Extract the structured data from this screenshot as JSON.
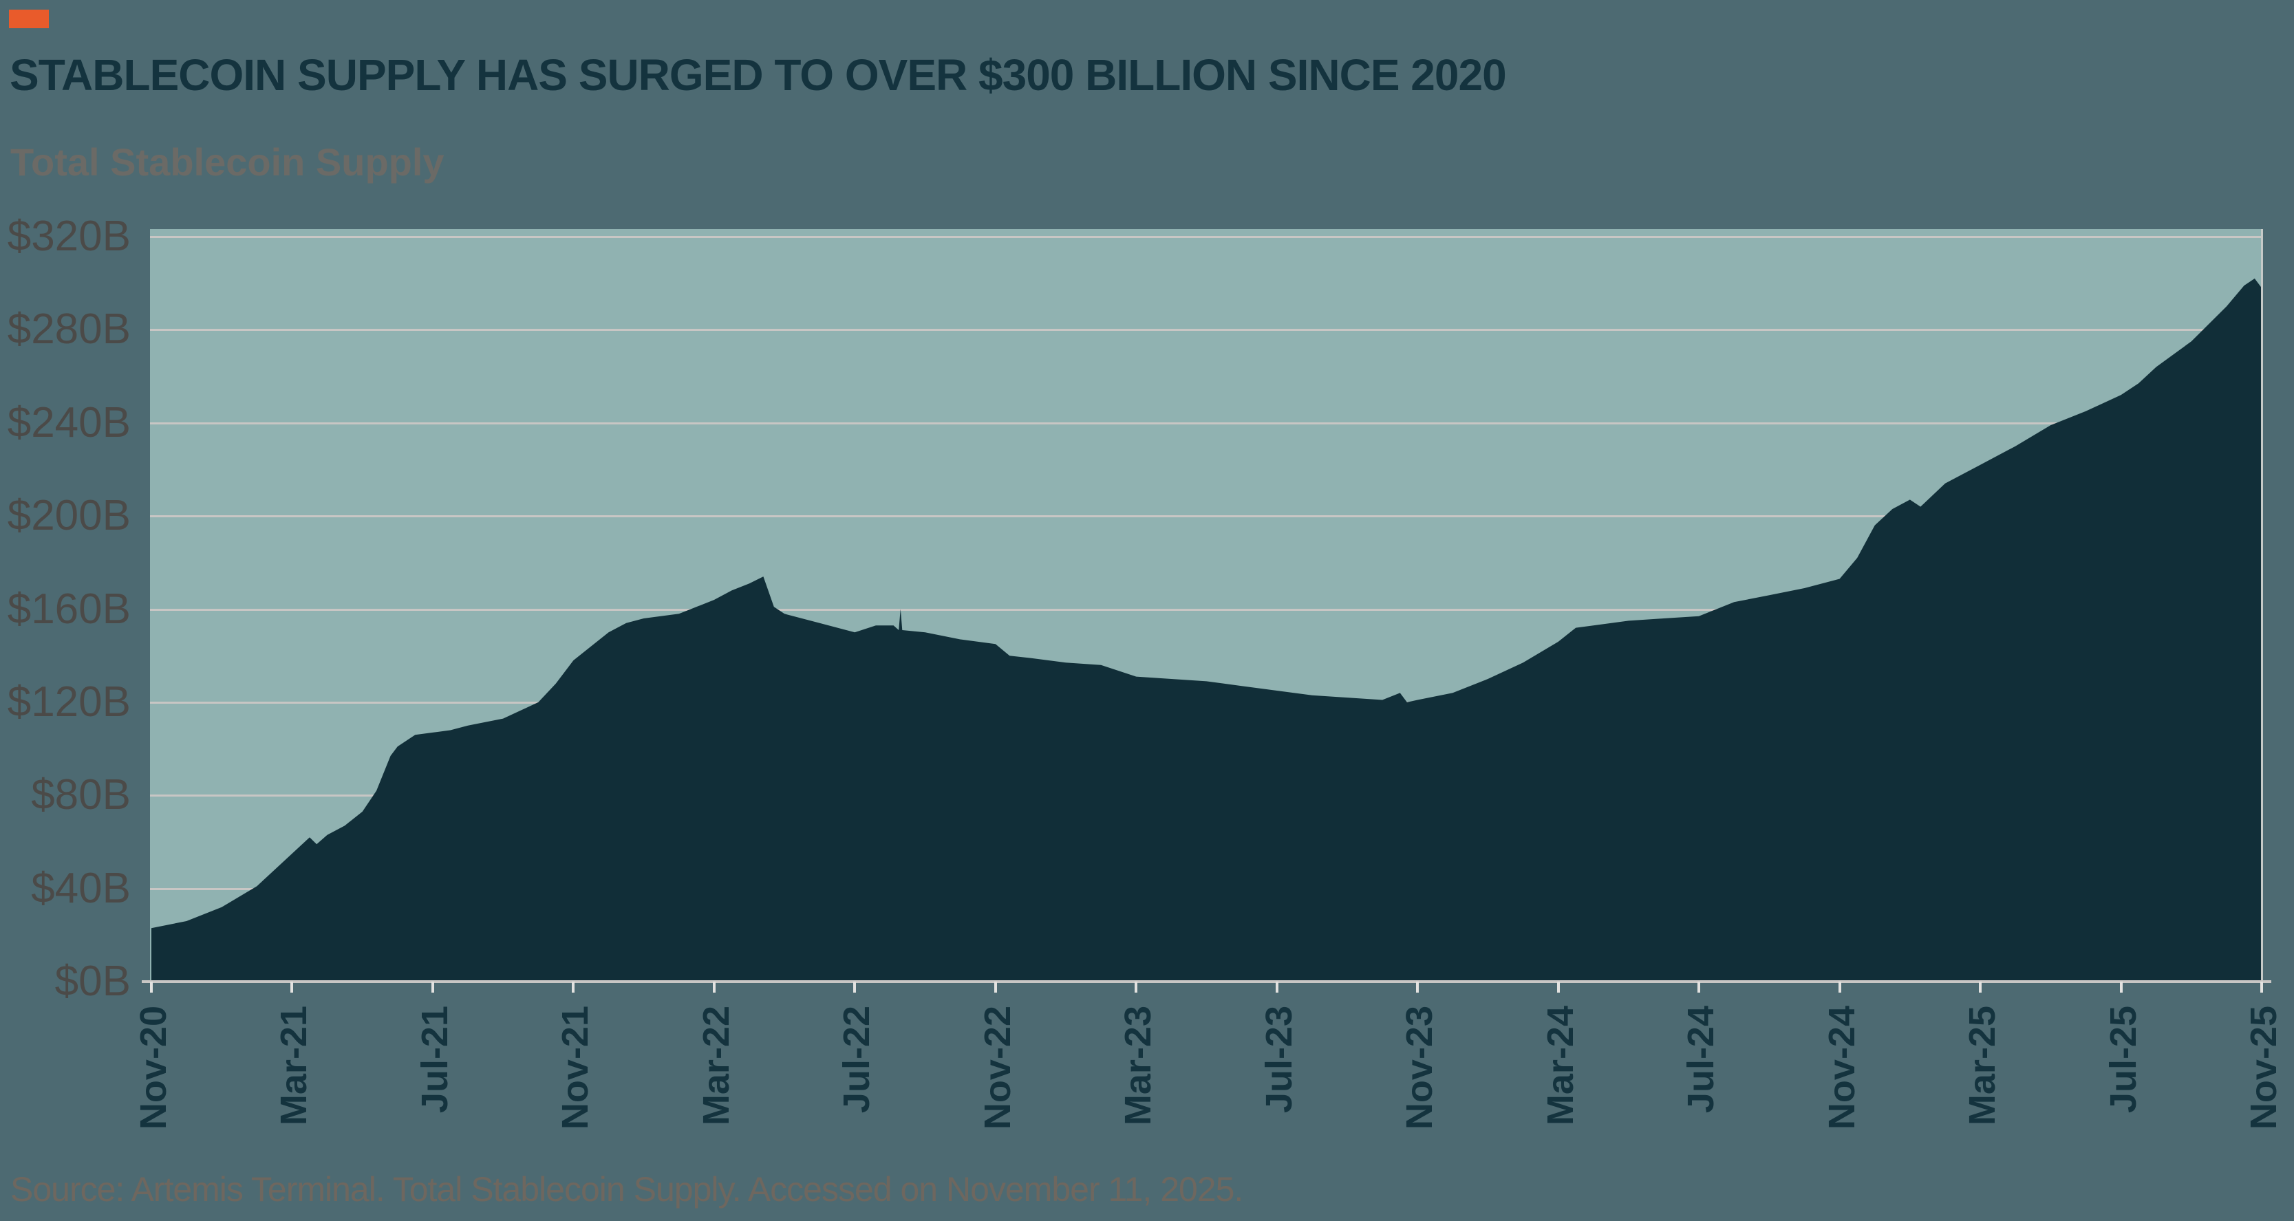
{
  "page": {
    "background": "#4d6a72"
  },
  "header": {
    "accent_color": "#e95b2b",
    "title": "STABLECOIN SUPPLY HAS SURGED TO OVER $300 BILLION SINCE 2020",
    "subtitle": "Total Stablecoin Supply"
  },
  "footer": {
    "source_text": "Source: Artemis Terminal. Total Stablecoin Supply. Accessed on November 11, 2025."
  },
  "chart_data": {
    "type": "area",
    "title": "Total Stablecoin Supply",
    "unit": "USD billions",
    "xlabel": "",
    "ylabel": "",
    "ylim": [
      0,
      320
    ],
    "grid": true,
    "legend": "none",
    "colors": {
      "plot_background": "#90b2b1",
      "area_fill": "#112e38",
      "gridline": "#c8c6c4",
      "axis_line": "#c9c7c5",
      "tick": "#e3e2e0",
      "x_label_color": "#14333e",
      "y_label_color": "#4b4a48"
    },
    "y_ticks": [
      {
        "value": 0,
        "label": "$0B"
      },
      {
        "value": 40,
        "label": "$40B"
      },
      {
        "value": 80,
        "label": "$80B"
      },
      {
        "value": 120,
        "label": "$120B"
      },
      {
        "value": 160,
        "label": "$160B"
      },
      {
        "value": 200,
        "label": "$200B"
      },
      {
        "value": 240,
        "label": "$240B"
      },
      {
        "value": 280,
        "label": "$280B"
      },
      {
        "value": 320,
        "label": "$320B"
      }
    ],
    "x_ticks": [
      {
        "month_index": 0,
        "label": "Nov-20"
      },
      {
        "month_index": 4,
        "label": "Mar-21"
      },
      {
        "month_index": 8,
        "label": "Jul-21"
      },
      {
        "month_index": 12,
        "label": "Nov-21"
      },
      {
        "month_index": 16,
        "label": "Mar-22"
      },
      {
        "month_index": 20,
        "label": "Jul-22"
      },
      {
        "month_index": 24,
        "label": "Nov-22"
      },
      {
        "month_index": 28,
        "label": "Mar-23"
      },
      {
        "month_index": 32,
        "label": "Jul-23"
      },
      {
        "month_index": 36,
        "label": "Nov-23"
      },
      {
        "month_index": 40,
        "label": "Mar-24"
      },
      {
        "month_index": 44,
        "label": "Jul-24"
      },
      {
        "month_index": 48,
        "label": "Nov-24"
      },
      {
        "month_index": 52,
        "label": "Mar-25"
      },
      {
        "month_index": 56,
        "label": "Jul-25"
      },
      {
        "month_index": 60,
        "label": "Nov-25"
      }
    ],
    "series": [
      {
        "name": "Total Stablecoin Supply",
        "points_format": "[months_since_Nov_2020, supply_billions_usd]",
        "points": [
          [
            0,
            23
          ],
          [
            1,
            26
          ],
          [
            2,
            32
          ],
          [
            3,
            41
          ],
          [
            4,
            55
          ],
          [
            4.5,
            62
          ],
          [
            4.7,
            59
          ],
          [
            5,
            63
          ],
          [
            5.5,
            67
          ],
          [
            6,
            73
          ],
          [
            6.4,
            82
          ],
          [
            6.8,
            97
          ],
          [
            7,
            101
          ],
          [
            7.5,
            106
          ],
          [
            8,
            107
          ],
          [
            8.5,
            108
          ],
          [
            9,
            110
          ],
          [
            10,
            113
          ],
          [
            11,
            120
          ],
          [
            11.5,
            128
          ],
          [
            12,
            138
          ],
          [
            13,
            150
          ],
          [
            13.5,
            154
          ],
          [
            14,
            156
          ],
          [
            15,
            158
          ],
          [
            16,
            164
          ],
          [
            16.5,
            168
          ],
          [
            17,
            171
          ],
          [
            17.4,
            174
          ],
          [
            17.7,
            161
          ],
          [
            18,
            158
          ],
          [
            19,
            154
          ],
          [
            20,
            150
          ],
          [
            20.6,
            153
          ],
          [
            21.1,
            153
          ],
          [
            21.25,
            151
          ],
          [
            21.3,
            160
          ],
          [
            21.35,
            151
          ],
          [
            22,
            150
          ],
          [
            23,
            147
          ],
          [
            24,
            145
          ],
          [
            24.4,
            140
          ],
          [
            25,
            139
          ],
          [
            26,
            137
          ],
          [
            27,
            136
          ],
          [
            28,
            131
          ],
          [
            29,
            130
          ],
          [
            30,
            129
          ],
          [
            31,
            127
          ],
          [
            32,
            125
          ],
          [
            33,
            123
          ],
          [
            34,
            122
          ],
          [
            35,
            121
          ],
          [
            35.5,
            124
          ],
          [
            35.7,
            120
          ],
          [
            36,
            121
          ],
          [
            37,
            124
          ],
          [
            38,
            130
          ],
          [
            39,
            137
          ],
          [
            40,
            146
          ],
          [
            40.5,
            152
          ],
          [
            41,
            153
          ],
          [
            42,
            155
          ],
          [
            43,
            156
          ],
          [
            44,
            157
          ],
          [
            45,
            163
          ],
          [
            46,
            166
          ],
          [
            47,
            169
          ],
          [
            48,
            173
          ],
          [
            48.5,
            182
          ],
          [
            49,
            196
          ],
          [
            49.5,
            203
          ],
          [
            50,
            207
          ],
          [
            50.3,
            204
          ],
          [
            51,
            214
          ],
          [
            52,
            222
          ],
          [
            53,
            230
          ],
          [
            54,
            239
          ],
          [
            55,
            245
          ],
          [
            56,
            252
          ],
          [
            56.5,
            257
          ],
          [
            57,
            264
          ],
          [
            58,
            275
          ],
          [
            59,
            290
          ],
          [
            59.5,
            299
          ],
          [
            59.8,
            302
          ],
          [
            60,
            298
          ]
        ]
      }
    ]
  }
}
